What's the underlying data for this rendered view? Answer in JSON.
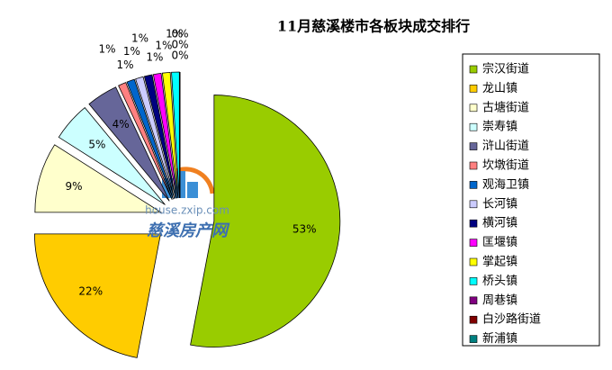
{
  "chart_data": {
    "type": "pie",
    "title": "11月慈溪楼市各板块成交排行",
    "categories": [
      "宗汉街道",
      "龙山镇",
      "古塘街道",
      "崇寿镇",
      "浒山街道",
      "坎墩街道",
      "观海卫镇",
      "长河镇",
      "横河镇",
      "匡堰镇",
      "掌起镇",
      "桥头镇",
      "周巷镇",
      "白沙路街道",
      "新浦镇"
    ],
    "values": [
      53,
      22,
      9,
      5,
      4,
      1,
      1,
      1,
      1,
      1,
      1,
      1,
      0,
      0,
      0
    ],
    "value_labels": [
      "53%",
      "22%",
      "9%",
      "5%",
      "4%",
      "1%",
      "1%",
      "1%",
      "1%",
      "1%",
      "1%",
      "1%",
      "0%",
      "0%",
      "0%"
    ],
    "colors": [
      "#99cc00",
      "#ffcc00",
      "#ffffcc",
      "#ccffff",
      "#666699",
      "#ff8080",
      "#0066cc",
      "#ccccff",
      "#000080",
      "#ff00ff",
      "#ffff00",
      "#00ffff",
      "#800080",
      "#800000",
      "#008080"
    ],
    "legend": "right",
    "watermark": [
      "house.zxip.com",
      "慈溪房产网"
    ]
  }
}
